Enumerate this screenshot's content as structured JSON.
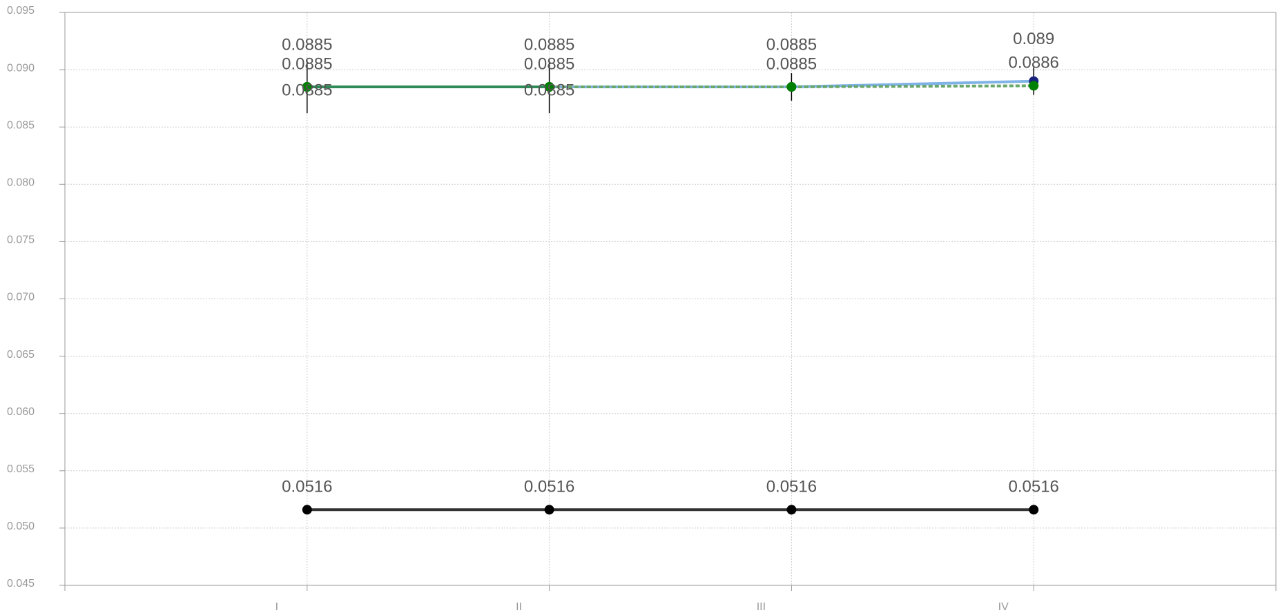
{
  "chart_data": {
    "type": "line",
    "categories": [
      "I",
      "II",
      "III",
      "IV"
    ],
    "series": [
      {
        "color": "#7fb2e5",
        "marker": "#1a237e",
        "values": [
          0.0885,
          0.0885,
          0.0885,
          0.089
        ],
        "errors": [
          0.0023,
          0.0023,
          0.0012,
          0.0012
        ]
      },
      {
        "color": "#6aa86a",
        "marker": "#008000",
        "dashed": true,
        "values": [
          0.0885,
          0.0885,
          0.0885,
          0.0886
        ]
      },
      {
        "color": "#2e8b57",
        "marker": "#008000",
        "values": [
          0.0885,
          0.0885,
          null,
          null
        ]
      },
      {
        "color": "#333333",
        "marker": "#000000",
        "values": [
          0.0516,
          0.0516,
          0.0516,
          0.0516
        ]
      }
    ],
    "ylim": [
      0.045,
      0.095
    ],
    "yticks": [
      0.045,
      {
        "value": 0.05,
        "label": "0.050"
      },
      0.055,
      {
        "value": 0.06,
        "label": "0.060"
      },
      0.065,
      {
        "value": 0.07,
        "label": "0.070"
      },
      0.075,
      {
        "value": 0.08,
        "label": "0.080"
      },
      0.085,
      {
        "value": 0.09,
        "label": "0.090"
      },
      0.095
    ],
    "grid": true
  }
}
